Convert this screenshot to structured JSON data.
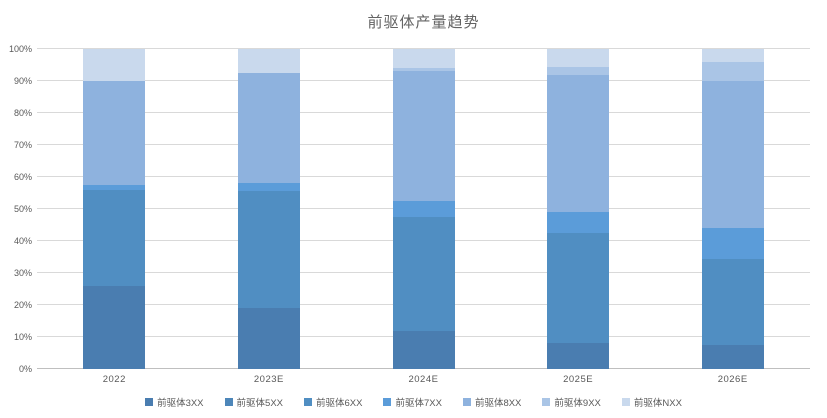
{
  "chart_data": {
    "type": "bar",
    "variant": "stacked-100-percent",
    "title": "前驱体产量趋势",
    "categories": [
      "2022",
      "2023E",
      "2024E",
      "2025E",
      "2026E"
    ],
    "series": [
      {
        "name": "前驱体3XX",
        "color": "#4A7DB0",
        "values": [
          26,
          19,
          12,
          8,
          7.5
        ]
      },
      {
        "name": "前驱体5XX",
        "color": "#4D86B9",
        "values": [
          0,
          0,
          0,
          0,
          0
        ]
      },
      {
        "name": "前驱体6XX",
        "color": "#508EC2",
        "values": [
          30,
          36.5,
          35.5,
          34.5,
          27
        ]
      },
      {
        "name": "前驱体7XX",
        "color": "#5B9CD9",
        "values": [
          1.5,
          2.5,
          5,
          6.5,
          9.5
        ]
      },
      {
        "name": "前驱体8XX",
        "color": "#8EB2DE",
        "values": [
          32.5,
          34.5,
          40.5,
          43,
          46
        ]
      },
      {
        "name": "前驱体9XX",
        "color": "#AAC5E6",
        "values": [
          0,
          0,
          1,
          2.5,
          6
        ]
      },
      {
        "name": "前驱体NXX",
        "color": "#C9D9ED",
        "values": [
          10,
          7.5,
          6,
          5.5,
          4
        ]
      }
    ],
    "yticks": [
      "0%",
      "10%",
      "20%",
      "30%",
      "40%",
      "50%",
      "60%",
      "70%",
      "80%",
      "90%",
      "100%"
    ],
    "ylim": [
      0,
      100
    ],
    "xlabel": "",
    "ylabel": "",
    "grid": true,
    "legend_position": "bottom",
    "colors": {
      "grid": "#D9D9D9",
      "axis_line": "#BFBFBF",
      "tick_text": "#595959",
      "title_text": "#636363",
      "background": "#FFFFFF"
    }
  }
}
